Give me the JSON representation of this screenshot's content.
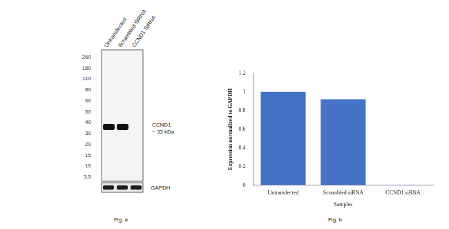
{
  "chart_data": {
    "type": "bar",
    "categories": [
      "Untransfected",
      "Scrambled siRNA",
      "CCND1 siRNA"
    ],
    "values": [
      1,
      0.92,
      0.005
    ],
    "color": "#4472c4",
    "xlabel": "Samples",
    "ylabel": "Expression normalized to GAPDH",
    "ylim": [
      0,
      1.2
    ],
    "yticks": [
      0,
      0.2,
      0.4,
      0.6,
      0.8,
      1,
      1.2
    ],
    "grid": false
  },
  "figure_a": {
    "lanes": [
      "Untransfected",
      "Scrambled SiRNA",
      "CCND1 SiRNA"
    ],
    "markers": [
      260,
      160,
      110,
      80,
      60,
      50,
      40,
      30,
      20,
      15,
      10,
      3.5
    ],
    "target": {
      "label": "CCND1",
      "size": "~ 33 kDa",
      "present": [
        true,
        true,
        false
      ]
    },
    "loading_control": {
      "label": "GAPDH",
      "present": [
        true,
        true,
        true
      ]
    }
  },
  "captions": {
    "a": "Fig. a",
    "b": "Fig. b"
  }
}
